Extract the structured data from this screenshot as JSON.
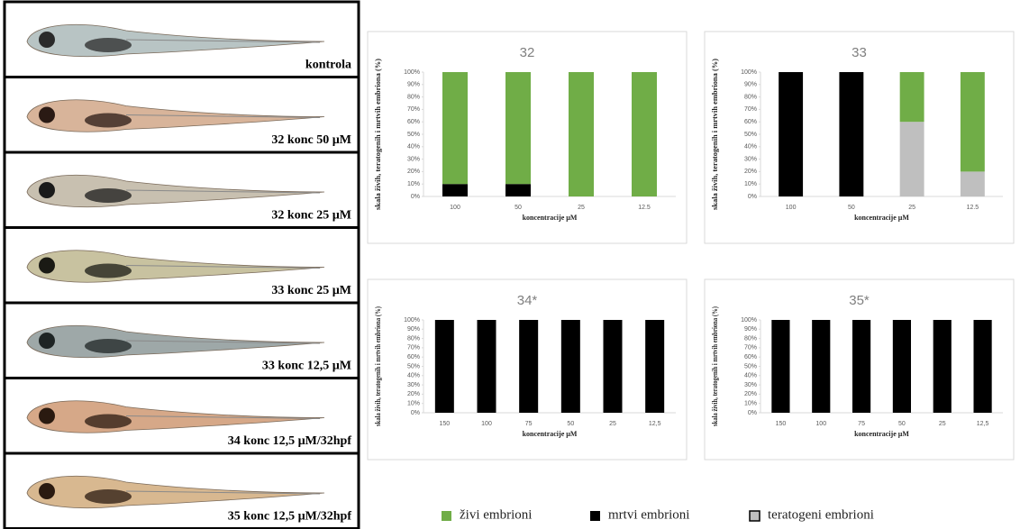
{
  "panels": [
    "kontrola",
    "32 konc 50 µM",
    "32 konc 25 µM",
    "33 konc 25 µM",
    "33 konc 12,5  µM",
    "34 konc 12,5  µM/32hpf",
    "35 konc 12,5  µM/32hpf"
  ],
  "legend": [
    {
      "name": "živi embrioni",
      "color": "#70ad47"
    },
    {
      "name": "mrtvi embrioni",
      "color": "#000000"
    },
    {
      "name": "teratogeni embrioni",
      "color": "#bfbfbf"
    }
  ],
  "chart_data": [
    {
      "type": "bar",
      "stacked": true,
      "title": "32",
      "categories": [
        "100",
        "50",
        "25",
        "12.5"
      ],
      "series": [
        {
          "values": [
            90,
            90,
            100,
            100
          ]
        },
        {
          "values": [
            10,
            10,
            0,
            0
          ]
        },
        {
          "values": [
            0,
            0,
            0,
            0
          ]
        }
      ],
      "ylim": [
        0,
        100
      ],
      "yticks": [
        {
          "value": 0,
          "label": "0%"
        },
        {
          "value": 10,
          "label": "10%"
        },
        {
          "value": 20,
          "label": "20%"
        },
        {
          "value": 30,
          "label": "30%"
        },
        {
          "value": 40,
          "label": "40%"
        },
        {
          "value": 50,
          "label": "50%"
        },
        {
          "value": 60,
          "label": "60%"
        },
        {
          "value": 70,
          "label": "70%"
        },
        {
          "value": 80,
          "label": "80%"
        },
        {
          "value": 90,
          "label": "90%"
        },
        {
          "value": 100,
          "label": "100%"
        }
      ],
      "x_label": "koncentracije µM",
      "y_label": "skala živih, teratogenih i mrtvih embriona (%)"
    },
    {
      "type": "bar",
      "stacked": true,
      "title": "33",
      "categories": [
        "100",
        "50",
        "25",
        "12.5"
      ],
      "series": [
        {
          "values": [
            0,
            0,
            40,
            80
          ]
        },
        {
          "values": [
            100,
            100,
            0,
            0
          ]
        },
        {
          "values": [
            0,
            0,
            60,
            20
          ]
        }
      ],
      "ylim": [
        0,
        100
      ],
      "yticks": [
        {
          "value": 0,
          "label": "0%"
        },
        {
          "value": 10,
          "label": "10%"
        },
        {
          "value": 20,
          "label": "20%"
        },
        {
          "value": 30,
          "label": "30%"
        },
        {
          "value": 40,
          "label": "40%"
        },
        {
          "value": 50,
          "label": "50%"
        },
        {
          "value": 60,
          "label": "60%"
        },
        {
          "value": 70,
          "label": "70%"
        },
        {
          "value": 80,
          "label": "80%"
        },
        {
          "value": 90,
          "label": "90%"
        },
        {
          "value": 100,
          "label": "100%"
        }
      ],
      "x_label": "koncentracije µM",
      "y_label": "skala živih, teratogenih i mrtvih embriona (%)"
    },
    {
      "type": "bar",
      "stacked": true,
      "title": "34*",
      "categories": [
        "150",
        "100",
        "75",
        "50",
        "25",
        "12,5"
      ],
      "series": [
        {
          "values": [
            0,
            0,
            0,
            0,
            0,
            0
          ]
        },
        {
          "values": [
            100,
            100,
            100,
            100,
            100,
            100
          ]
        },
        {
          "values": [
            0,
            0,
            0,
            0,
            0,
            0
          ]
        }
      ],
      "ylim": [
        0,
        100
      ],
      "yticks": [
        {
          "value": 0,
          "label": "0%"
        },
        {
          "value": 10,
          "label": "10%"
        },
        {
          "value": 20,
          "label": "20%"
        },
        {
          "value": 30,
          "label": "30%"
        },
        {
          "value": 40,
          "label": "40%"
        },
        {
          "value": 50,
          "label": "50%"
        },
        {
          "value": 60,
          "label": "60%"
        },
        {
          "value": 70,
          "label": "70%"
        },
        {
          "value": 80,
          "label": "80%"
        },
        {
          "value": 90,
          "label": "90%"
        },
        {
          "value": 100,
          "label": "100%"
        }
      ],
      "x_label": "koncentracije µM",
      "y_label": "skala živih, teratogenih i mrtvih embriona (%)"
    },
    {
      "type": "bar",
      "stacked": true,
      "title": "35*",
      "categories": [
        "150",
        "100",
        "75",
        "50",
        "25",
        "12,5"
      ],
      "series": [
        {
          "values": [
            0,
            0,
            0,
            0,
            0,
            0
          ]
        },
        {
          "values": [
            100,
            100,
            100,
            100,
            100,
            100
          ]
        },
        {
          "values": [
            0,
            0,
            0,
            0,
            0,
            0
          ]
        }
      ],
      "ylim": [
        0,
        100
      ],
      "yticks": [
        {
          "value": 0,
          "label": "0%"
        },
        {
          "value": 10,
          "label": "10%"
        },
        {
          "value": 20,
          "label": "20%"
        },
        {
          "value": 30,
          "label": "30%"
        },
        {
          "value": 40,
          "label": "40%"
        },
        {
          "value": 50,
          "label": "50%"
        },
        {
          "value": 60,
          "label": "60%"
        },
        {
          "value": 70,
          "label": "70%"
        },
        {
          "value": 80,
          "label": "80%"
        },
        {
          "value": 90,
          "label": "90%"
        },
        {
          "value": 100,
          "label": "100%"
        }
      ],
      "x_label": "koncentracije µM",
      "y_label": "skala živih, teratogenih i mrtvih embriona (%)"
    }
  ]
}
